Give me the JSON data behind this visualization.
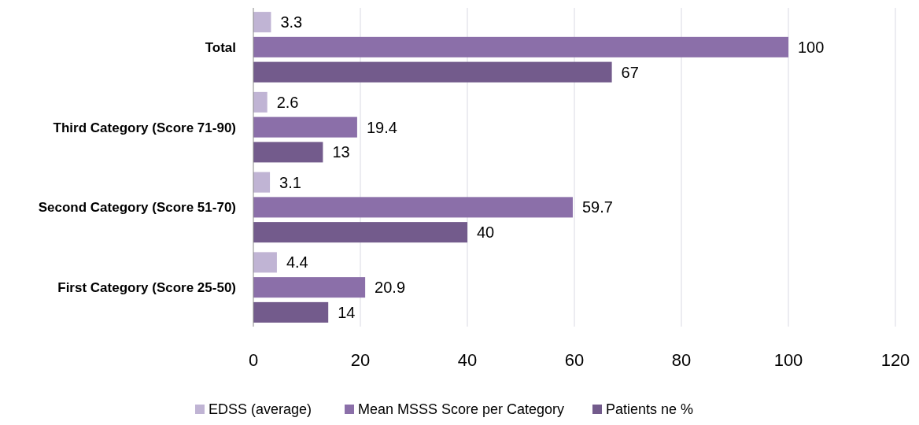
{
  "chart_data": {
    "type": "bar",
    "orientation": "horizontal",
    "categories": [
      "Total",
      "Third Category (Score 71-90)",
      "Second Category (Score 51-70)",
      "First Category (Score 25-50)"
    ],
    "series": [
      {
        "name": "EDSS (average)",
        "color": "#c0b4d4",
        "values": [
          3.3,
          2.6,
          3.1,
          4.4
        ]
      },
      {
        "name": "Mean MSSS Score per Category",
        "color": "#8b6fa9",
        "values": [
          100,
          19.4,
          59.7,
          20.9
        ]
      },
      {
        "name": "Patients ne %",
        "color": "#735b8c",
        "values": [
          67,
          13,
          40,
          14
        ]
      }
    ],
    "xlim": [
      0,
      120
    ],
    "xticks": [
      0,
      20,
      40,
      60,
      80,
      100,
      120
    ],
    "grid": "x",
    "data_labels": true,
    "legend": "bottom"
  }
}
